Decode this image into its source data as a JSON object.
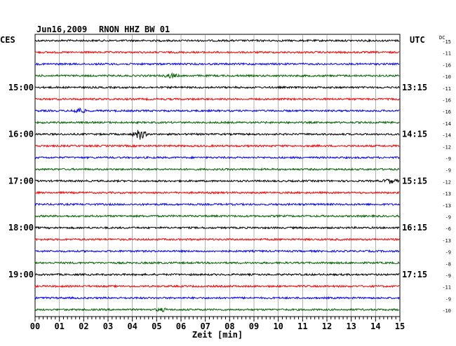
{
  "header": {
    "date": "Jun16,2009",
    "station": "RNON HHZ BW 01",
    "left_zone": "CES",
    "right_zone": "UTC",
    "dc_label": "DC"
  },
  "chart_data": {
    "type": "line",
    "title": "Jun16,2009 RNON HHZ BW 01",
    "xlabel": "Zeit [min]",
    "x_ticks": [
      "00",
      "01",
      "02",
      "03",
      "04",
      "05",
      "06",
      "07",
      "08",
      "09",
      "10",
      "11",
      "12",
      "13",
      "14",
      "15"
    ],
    "xlim": [
      0,
      15
    ],
    "grid": true,
    "trace_count": 24,
    "trace_colors": [
      "#000000",
      "#ff0000",
      "#0000ff",
      "#006400"
    ],
    "left_time_labels": [
      {
        "trace": 4,
        "label": "15:00"
      },
      {
        "trace": 8,
        "label": "16:00"
      },
      {
        "trace": 12,
        "label": "17:00"
      },
      {
        "trace": 16,
        "label": "18:00"
      },
      {
        "trace": 20,
        "label": "19:00"
      }
    ],
    "right_time_labels": [
      {
        "trace": 4,
        "label": "13:15"
      },
      {
        "trace": 8,
        "label": "14:15"
      },
      {
        "trace": 12,
        "label": "15:15"
      },
      {
        "trace": 16,
        "label": "16:15"
      },
      {
        "trace": 20,
        "label": "17:15"
      }
    ],
    "dc_offsets": [
      "-15",
      "-11",
      "-16",
      "-10",
      "-11",
      "-16",
      "-16",
      "-14",
      "-14",
      "-12",
      "-9",
      "-9",
      "-12",
      "-13",
      "-13",
      "-9",
      "-6",
      "-13",
      "-9",
      "-8",
      "-9",
      "-11",
      "-9",
      "-10"
    ],
    "events": [
      {
        "trace": 3,
        "minute": 5.6,
        "strength": 3
      },
      {
        "trace": 6,
        "minute": 1.8,
        "strength": 4
      },
      {
        "trace": 8,
        "minute": 4.3,
        "strength": 7
      },
      {
        "trace": 12,
        "minute": 14.6,
        "strength": 3
      },
      {
        "trace": 23,
        "minute": 5.2,
        "strength": 2
      }
    ]
  }
}
